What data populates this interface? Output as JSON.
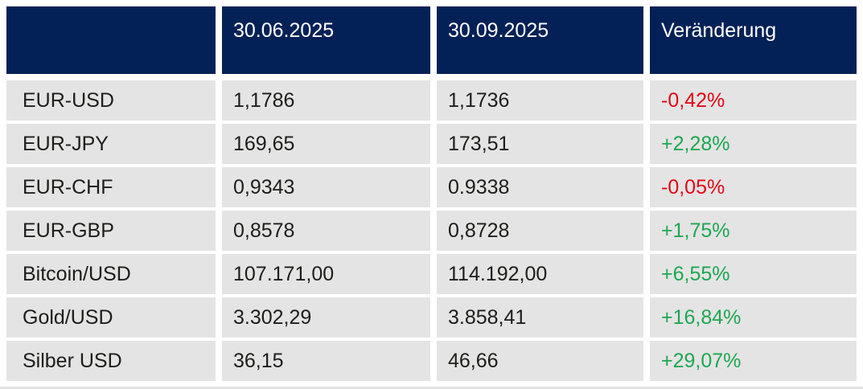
{
  "colors": {
    "header_bg": "#042157",
    "header_text": "#ffffff",
    "row_bg": "#e4e4e4",
    "cell_text": "#1d1d1b",
    "positive": "#1da751",
    "negative": "#e30613"
  },
  "chart_data": {
    "type": "table",
    "title": "",
    "columns": [
      "",
      "30.06.2025",
      "30.09.2025",
      "Veränderung"
    ],
    "rows": [
      {
        "label": "EUR-USD",
        "val_3006": "1,1786",
        "val_3009": "1,1736",
        "change": "-0,42%",
        "direction": "down"
      },
      {
        "label": "EUR-JPY",
        "val_3006": "169,65",
        "val_3009": "173,51",
        "change": "+2,28%",
        "direction": "up"
      },
      {
        "label": "EUR-CHF",
        "val_3006": "0,9343",
        "val_3009": "0.9338",
        "change": "-0,05%",
        "direction": "down"
      },
      {
        "label": "EUR-GBP",
        "val_3006": "0,8578",
        "val_3009": "0,8728",
        "change": "+1,75%",
        "direction": "up"
      },
      {
        "label": "Bitcoin/USD",
        "val_3006": "107.171,00",
        "val_3009": "114.192,00",
        "change": "+6,55%",
        "direction": "up"
      },
      {
        "label": "Gold/USD",
        "val_3006": "3.302,29",
        "val_3009": "3.858,41",
        "change": "+16,84%",
        "direction": "up"
      },
      {
        "label": "Silber USD",
        "val_3006": "36,15",
        "val_3009": "46,66",
        "change": "+29,07%",
        "direction": "up"
      }
    ]
  }
}
